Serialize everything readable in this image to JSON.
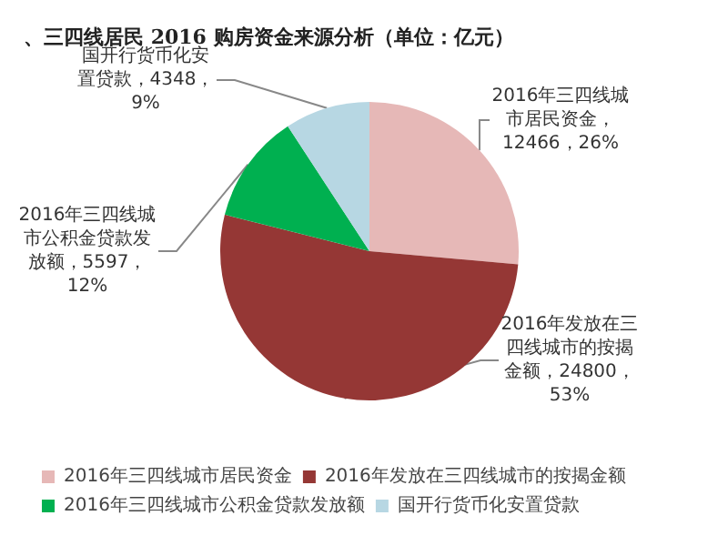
{
  "chart_data": {
    "type": "pie",
    "title": "、三四线居民 2016 购房资金来源分析（单位：亿元）",
    "categories": [
      "2016年三四线城市居民资金",
      "2016年发放在三四线城市的按揭金额",
      "2016年三四线城市公积金贷款发放额",
      "国开行货币化安置贷款"
    ],
    "values": [
      12466,
      24800,
      5597,
      4348
    ],
    "colors": [
      "#e6b8b7",
      "#953735",
      "#00b050",
      "#b7d7e3"
    ],
    "value_labels": [
      "2016年三四线城市居民资金，12466，26%",
      "2016年发放在三四线城市的按揭金额，24800，53%",
      "2016年三四线城市公积金贷款发放额，5597，12%",
      "国开行货币化安置贷款，4348，9%"
    ],
    "legend": "bottom"
  }
}
